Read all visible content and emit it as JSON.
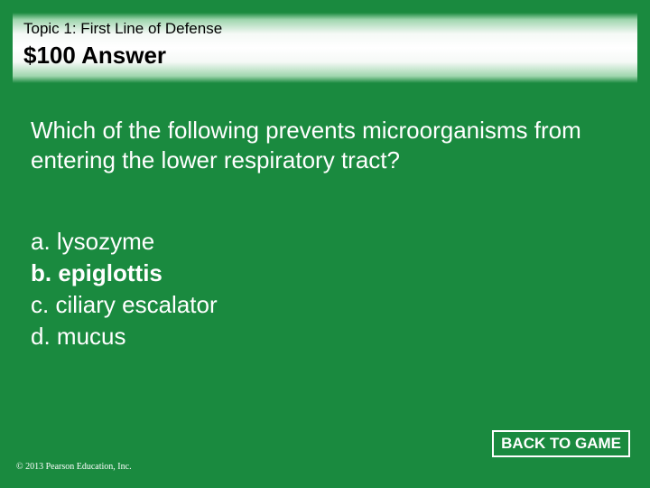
{
  "colors": {
    "slide_bg": "#1a8a3f",
    "header_gradient": [
      "#1a8a3f",
      "#9fd6ae",
      "#f5f9f6",
      "#ffffff",
      "#f5f9f6",
      "#9fd6ae",
      "#1a8a3f"
    ],
    "text_light": "#ffffff",
    "text_dark": "#000000",
    "button_border": "#ffffff",
    "button_bg": "#1a8a3f"
  },
  "typography": {
    "topic_fontsize": 17,
    "answer_fontsize": 26,
    "question_fontsize": 26,
    "options_fontsize": 26,
    "copyright_fontsize": 10,
    "button_fontsize": 17,
    "answer_weight": "bold",
    "correct_weight": "bold",
    "button_weight": "bold"
  },
  "header": {
    "topic": "Topic 1: First Line of Defense",
    "answer_label": "$100 Answer"
  },
  "question": "Which of the following prevents microorganisms from entering the lower respiratory tract?",
  "options": {
    "a": "a. lysozyme",
    "b": "b. epiglottis",
    "c": "c. ciliary escalator",
    "d": "d. mucus",
    "correct_key": "b"
  },
  "footer": {
    "copyright": "© 2013 Pearson Education, Inc.",
    "back_label": "BACK TO GAME"
  }
}
